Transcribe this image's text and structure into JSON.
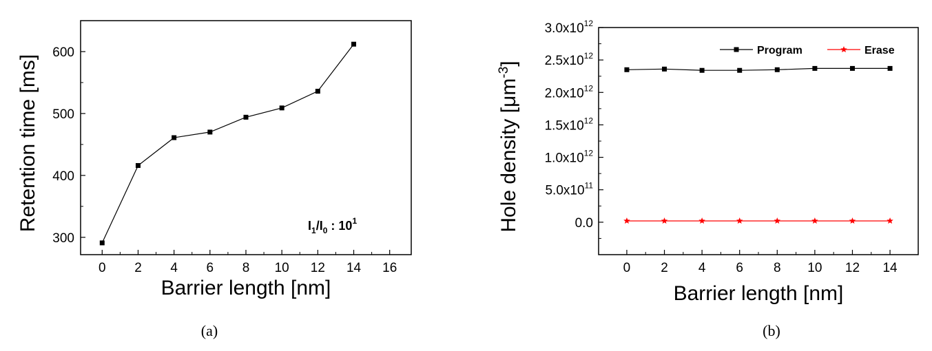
{
  "chart_data": [
    {
      "type": "line",
      "caption": "(a)",
      "xlabel": "Barrier length [nm]",
      "ylabel": "Retention time [ms]",
      "xlim": [
        -1.2,
        17.2
      ],
      "ylim": [
        272,
        650
      ],
      "x_ticks": [
        "0",
        "2",
        "4",
        "6",
        "8",
        "10",
        "12",
        "14",
        "16"
      ],
      "y_ticks": [
        "300",
        "400",
        "500",
        "600"
      ],
      "annotation": {
        "I": "I",
        "sub1": "1",
        "slash": "/I",
        "sub0": "0",
        "colon": " : 10",
        "sup": "1"
      },
      "series": [
        {
          "color": "#000000",
          "marker": "square",
          "x": [
            0,
            2,
            4,
            6,
            8,
            10,
            12,
            14
          ],
          "values": [
            291,
            416,
            461,
            470,
            494,
            509,
            536,
            612
          ]
        }
      ]
    },
    {
      "type": "line",
      "caption": "(b)",
      "xlabel": "Barrier length [nm]",
      "ylabel": {
        "main": "Hole density [",
        "mu": "μ",
        "unit": "m",
        "exp": "-3",
        "close": "]"
      },
      "xlim": [
        -1.5,
        15.5
      ],
      "ylim": [
        -0.5,
        3.0
      ],
      "x_ticks": [
        "0",
        "2",
        "4",
        "6",
        "8",
        "10",
        "12",
        "14"
      ],
      "y_ticks": [
        {
          "v": 0.0,
          "base": "0.0",
          "exp": ""
        },
        {
          "v": 0.5,
          "base": "5.0x10",
          "exp": "11"
        },
        {
          "v": 1.0,
          "base": "1.0x10",
          "exp": "12"
        },
        {
          "v": 1.5,
          "base": "1.5x10",
          "exp": "12"
        },
        {
          "v": 2.0,
          "base": "2.0x10",
          "exp": "12"
        },
        {
          "v": 2.5,
          "base": "2.5x10",
          "exp": "12"
        },
        {
          "v": 3.0,
          "base": "3.0x10",
          "exp": "12"
        }
      ],
      "y_scale": "×10^12",
      "legend": "top-right",
      "series": [
        {
          "name": "Program",
          "color": "#000000",
          "marker": "square",
          "x": [
            0,
            2,
            4,
            6,
            8,
            10,
            12,
            14
          ],
          "values": [
            2.35,
            2.36,
            2.34,
            2.34,
            2.35,
            2.37,
            2.37,
            2.37
          ]
        },
        {
          "name": "Erase",
          "color": "#ff0000",
          "marker": "star",
          "x": [
            0,
            2,
            4,
            6,
            8,
            10,
            12,
            14
          ],
          "values": [
            0.02,
            0.02,
            0.02,
            0.02,
            0.02,
            0.02,
            0.02,
            0.02
          ]
        }
      ]
    }
  ]
}
